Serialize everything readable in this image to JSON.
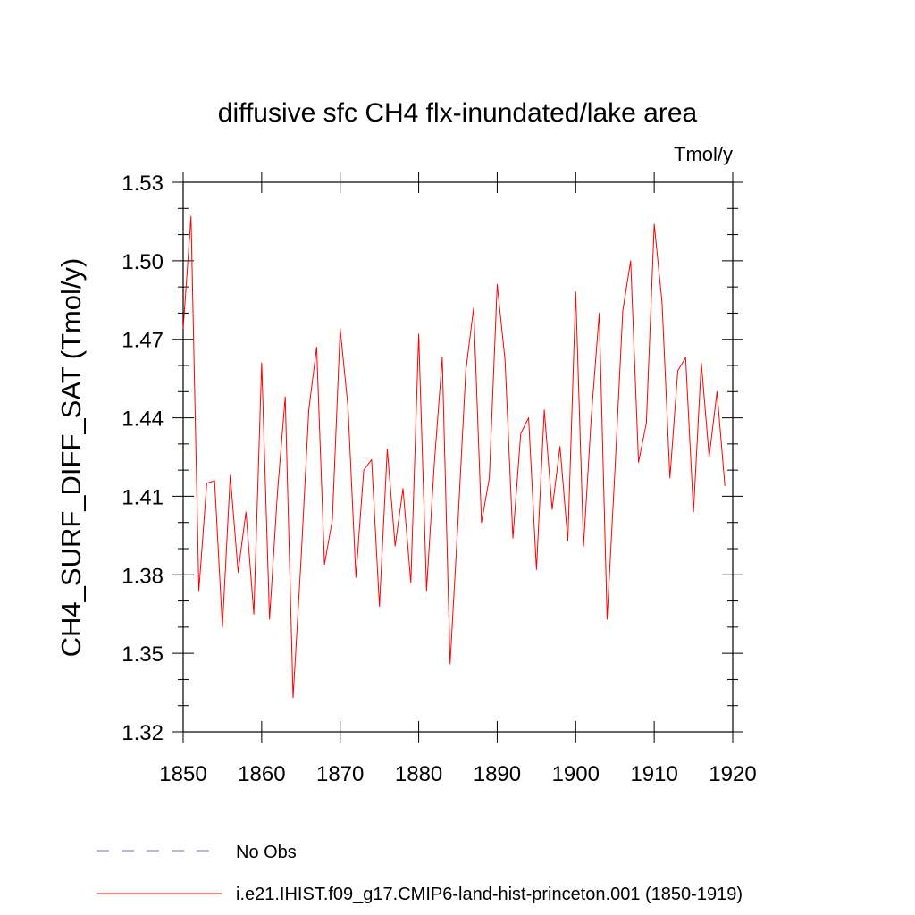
{
  "chart_data": {
    "type": "line",
    "title": "diffusive sfc CH4 flx-inundated/lake area",
    "units_label": "Tmol/y",
    "ylabel": "CH4_SURF_DIFF_SAT  (Tmol/y)",
    "xlabel": "",
    "xlim": [
      1850,
      1920
    ],
    "ylim": [
      1.32,
      1.53
    ],
    "x_ticks": [
      1850,
      1860,
      1870,
      1880,
      1890,
      1900,
      1910,
      1920
    ],
    "x_tick_labels": [
      "1850",
      "1860",
      "1870",
      "1880",
      "1890",
      "1900",
      "1910",
      "1920"
    ],
    "y_ticks": [
      1.32,
      1.35,
      1.38,
      1.41,
      1.44,
      1.47,
      1.5,
      1.53
    ],
    "y_tick_labels": [
      "1.32",
      "1.35",
      "1.38",
      "1.41",
      "1.44",
      "1.47",
      "1.50",
      "1.53"
    ],
    "grid": false,
    "legend_position": "bottom",
    "legend": [
      {
        "label": "No Obs",
        "style": "dashed",
        "color": "#6f6fb0"
      },
      {
        "label": "i.e21.IHIST.f09_g17.CMIP6-land-hist-princeton.001 (1850-1919)",
        "style": "solid",
        "color": "#ff0000"
      }
    ],
    "series": [
      {
        "name": "i.e21.IHIST.f09_g17.CMIP6-land-hist-princeton.001 (1850-1919)",
        "color": "#ff0000",
        "x": [
          1850,
          1851,
          1852,
          1853,
          1854,
          1855,
          1856,
          1857,
          1858,
          1859,
          1860,
          1861,
          1862,
          1863,
          1864,
          1865,
          1866,
          1867,
          1868,
          1869,
          1870,
          1871,
          1872,
          1873,
          1874,
          1875,
          1876,
          1877,
          1878,
          1879,
          1880,
          1881,
          1882,
          1883,
          1884,
          1885,
          1886,
          1887,
          1888,
          1889,
          1890,
          1891,
          1892,
          1893,
          1894,
          1895,
          1896,
          1897,
          1898,
          1899,
          1900,
          1901,
          1902,
          1903,
          1904,
          1905,
          1906,
          1907,
          1908,
          1909,
          1910,
          1911,
          1912,
          1913,
          1914,
          1915,
          1916,
          1917,
          1918,
          1919
        ],
        "y": [
          1.474,
          1.517,
          1.374,
          1.415,
          1.416,
          1.36,
          1.418,
          1.381,
          1.404,
          1.365,
          1.461,
          1.363,
          1.411,
          1.448,
          1.333,
          1.385,
          1.443,
          1.467,
          1.384,
          1.401,
          1.474,
          1.444,
          1.379,
          1.42,
          1.424,
          1.368,
          1.428,
          1.391,
          1.413,
          1.377,
          1.472,
          1.374,
          1.423,
          1.463,
          1.346,
          1.4,
          1.458,
          1.482,
          1.4,
          1.417,
          1.491,
          1.462,
          1.394,
          1.434,
          1.44,
          1.382,
          1.443,
          1.405,
          1.429,
          1.393,
          1.488,
          1.391,
          1.441,
          1.48,
          1.363,
          1.42,
          1.481,
          1.5,
          1.423,
          1.438,
          1.514,
          1.484,
          1.417,
          1.458,
          1.463,
          1.404,
          1.461,
          1.425,
          1.45,
          1.414
        ]
      }
    ]
  }
}
